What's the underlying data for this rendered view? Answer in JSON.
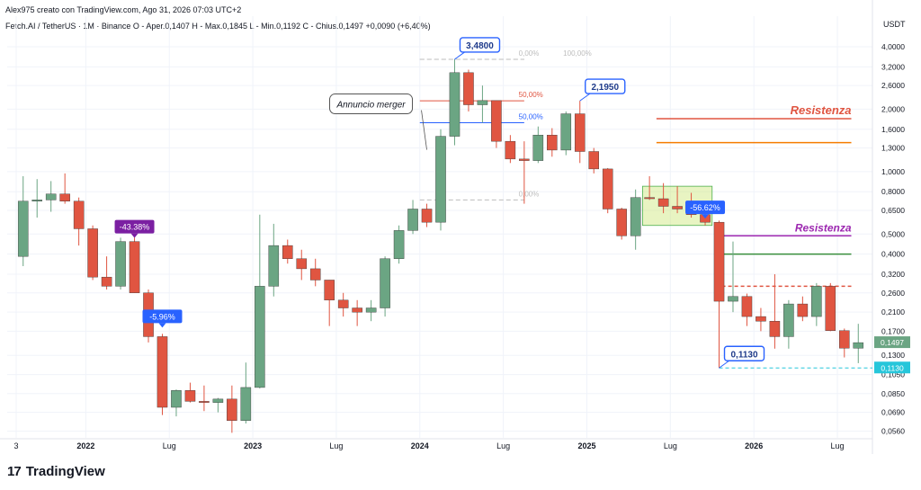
{
  "header": {
    "line1": "Alex975 creato con TradingView.com, Ago 31, 2026 07:03 UTC+2",
    "line2": "Fetch.AI / TetherUS · 1M · Binance  O - Aper.0,1407  H - Max.0,1845  L - Min.0,1192  C - Chius.0,1497  +0,0090 (+6,40%)"
  },
  "brand": {
    "name": "TradingView",
    "mark": "17"
  },
  "colors": {
    "up": "#6ba583",
    "down": "#e05541",
    "grid": "#f0f3fa",
    "axis": "#787b86",
    "blue": "#2962ff"
  },
  "chart_data": {
    "type": "candlestick",
    "currency": "USDT",
    "scale": "log",
    "ylim": [
      0.052,
      4.6
    ],
    "y_ticks": [
      "4,0000",
      "3,2000",
      "2,6000",
      "2,0000",
      "1,6000",
      "1,3000",
      "1,0000",
      "0,8000",
      "0,6500",
      "0,5000",
      "0,4000",
      "0,3200",
      "0,2600",
      "0,2100",
      "0,1700",
      "0,1300",
      "0,1050",
      "0,0850",
      "0,0690",
      "0,0560"
    ],
    "x_labels": [
      {
        "label": "3",
        "index": -0.5
      },
      {
        "label": "2022",
        "index": 4.5
      },
      {
        "label": "Lug",
        "index": 10.5
      },
      {
        "label": "2023",
        "index": 16.5
      },
      {
        "label": "Lug",
        "index": 22.5
      },
      {
        "label": "2024",
        "index": 28.5
      },
      {
        "label": "Lug",
        "index": 34.5
      },
      {
        "label": "2025",
        "index": 40.5
      },
      {
        "label": "Lug",
        "index": 46.5
      },
      {
        "label": "2026",
        "index": 52.5
      },
      {
        "label": "Lug",
        "index": 58.5
      }
    ],
    "candles": [
      {
        "o": 0.39,
        "h": 0.95,
        "l": 0.35,
        "c": 0.72
      },
      {
        "o": 0.72,
        "h": 0.92,
        "l": 0.6,
        "c": 0.73
      },
      {
        "o": 0.73,
        "h": 0.9,
        "l": 0.64,
        "c": 0.78
      },
      {
        "o": 0.78,
        "h": 0.98,
        "l": 0.7,
        "c": 0.72
      },
      {
        "o": 0.72,
        "h": 0.75,
        "l": 0.44,
        "c": 0.53
      },
      {
        "o": 0.53,
        "h": 0.55,
        "l": 0.3,
        "c": 0.31
      },
      {
        "o": 0.31,
        "h": 0.39,
        "l": 0.27,
        "c": 0.28
      },
      {
        "o": 0.28,
        "h": 0.48,
        "l": 0.27,
        "c": 0.46
      },
      {
        "o": 0.46,
        "h": 0.48,
        "l": 0.26,
        "c": 0.26
      },
      {
        "o": 0.26,
        "h": 0.27,
        "l": 0.15,
        "c": 0.16
      },
      {
        "o": 0.16,
        "h": 0.165,
        "l": 0.067,
        "c": 0.073
      },
      {
        "o": 0.073,
        "h": 0.089,
        "l": 0.066,
        "c": 0.088
      },
      {
        "o": 0.088,
        "h": 0.096,
        "l": 0.077,
        "c": 0.078
      },
      {
        "o": 0.078,
        "h": 0.093,
        "l": 0.07,
        "c": 0.077
      },
      {
        "o": 0.077,
        "h": 0.081,
        "l": 0.069,
        "c": 0.08
      },
      {
        "o": 0.08,
        "h": 0.093,
        "l": 0.055,
        "c": 0.063
      },
      {
        "o": 0.063,
        "h": 0.12,
        "l": 0.061,
        "c": 0.091
      },
      {
        "o": 0.091,
        "h": 0.62,
        "l": 0.09,
        "c": 0.28
      },
      {
        "o": 0.28,
        "h": 0.56,
        "l": 0.25,
        "c": 0.44
      },
      {
        "o": 0.44,
        "h": 0.47,
        "l": 0.36,
        "c": 0.38
      },
      {
        "o": 0.38,
        "h": 0.42,
        "l": 0.3,
        "c": 0.34
      },
      {
        "o": 0.34,
        "h": 0.38,
        "l": 0.28,
        "c": 0.3
      },
      {
        "o": 0.3,
        "h": 0.3,
        "l": 0.18,
        "c": 0.24
      },
      {
        "o": 0.24,
        "h": 0.26,
        "l": 0.2,
        "c": 0.22
      },
      {
        "o": 0.22,
        "h": 0.24,
        "l": 0.18,
        "c": 0.21
      },
      {
        "o": 0.21,
        "h": 0.24,
        "l": 0.19,
        "c": 0.22
      },
      {
        "o": 0.22,
        "h": 0.39,
        "l": 0.2,
        "c": 0.38
      },
      {
        "o": 0.38,
        "h": 0.55,
        "l": 0.36,
        "c": 0.52
      },
      {
        "o": 0.52,
        "h": 0.73,
        "l": 0.5,
        "c": 0.66
      },
      {
        "o": 0.66,
        "h": 0.7,
        "l": 0.54,
        "c": 0.57
      },
      {
        "o": 0.57,
        "h": 1.6,
        "l": 0.52,
        "c": 1.48
      },
      {
        "o": 1.48,
        "h": 3.48,
        "l": 1.34,
        "c": 3.0
      },
      {
        "o": 3.0,
        "h": 3.1,
        "l": 1.95,
        "c": 2.1
      },
      {
        "o": 2.1,
        "h": 2.6,
        "l": 1.72,
        "c": 2.2
      },
      {
        "o": 2.2,
        "h": 2.2,
        "l": 1.3,
        "c": 1.4
      },
      {
        "o": 1.4,
        "h": 1.5,
        "l": 1.1,
        "c": 1.15
      },
      {
        "o": 1.15,
        "h": 1.4,
        "l": 0.7,
        "c": 1.13
      },
      {
        "o": 1.13,
        "h": 1.65,
        "l": 1.1,
        "c": 1.5
      },
      {
        "o": 1.5,
        "h": 1.62,
        "l": 1.18,
        "c": 1.27
      },
      {
        "o": 1.27,
        "h": 1.95,
        "l": 1.2,
        "c": 1.9
      },
      {
        "o": 1.9,
        "h": 2.195,
        "l": 1.1,
        "c": 1.25
      },
      {
        "o": 1.25,
        "h": 1.3,
        "l": 0.98,
        "c": 1.03
      },
      {
        "o": 1.03,
        "h": 1.04,
        "l": 0.63,
        "c": 0.66
      },
      {
        "o": 0.66,
        "h": 0.67,
        "l": 0.47,
        "c": 0.49
      },
      {
        "o": 0.49,
        "h": 0.82,
        "l": 0.42,
        "c": 0.75
      },
      {
        "o": 0.75,
        "h": 0.95,
        "l": 0.73,
        "c": 0.74
      },
      {
        "o": 0.74,
        "h": 0.88,
        "l": 0.63,
        "c": 0.68
      },
      {
        "o": 0.68,
        "h": 0.85,
        "l": 0.63,
        "c": 0.66
      },
      {
        "o": 0.66,
        "h": 0.79,
        "l": 0.6,
        "c": 0.62
      },
      {
        "o": 0.62,
        "h": 0.69,
        "l": 0.55,
        "c": 0.57
      },
      {
        "o": 0.57,
        "h": 0.58,
        "l": 0.113,
        "c": 0.237
      },
      {
        "o": 0.237,
        "h": 0.46,
        "l": 0.21,
        "c": 0.25
      },
      {
        "o": 0.25,
        "h": 0.258,
        "l": 0.18,
        "c": 0.2
      },
      {
        "o": 0.2,
        "h": 0.22,
        "l": 0.17,
        "c": 0.19
      },
      {
        "o": 0.19,
        "h": 0.32,
        "l": 0.14,
        "c": 0.16
      },
      {
        "o": 0.16,
        "h": 0.24,
        "l": 0.14,
        "c": 0.23
      },
      {
        "o": 0.23,
        "h": 0.25,
        "l": 0.19,
        "c": 0.2
      },
      {
        "o": 0.2,
        "h": 0.29,
        "l": 0.18,
        "c": 0.28
      },
      {
        "o": 0.28,
        "h": 0.29,
        "l": 0.17,
        "c": 0.171
      },
      {
        "o": 0.171,
        "h": 0.175,
        "l": 0.127,
        "c": 0.1407
      },
      {
        "o": 0.1407,
        "h": 0.1845,
        "l": 0.1192,
        "c": 0.1497
      }
    ],
    "price_tags": [
      {
        "label": "0,1497",
        "price": 0.1497,
        "color": "#6ba583"
      },
      {
        "label": "0,1130",
        "price": 0.113,
        "color": "#26c6da"
      }
    ],
    "callouts": [
      {
        "label": "3,4800",
        "index": 31,
        "price": 3.48
      },
      {
        "label": "2,1950",
        "index": 40,
        "price": 2.195
      },
      {
        "label": "0,1130",
        "index": 50,
        "price": 0.113
      }
    ],
    "pct_badges": [
      {
        "label": "-43.38%",
        "index": 8,
        "price": 0.46,
        "color": "#7b1fa2"
      },
      {
        "label": "-5.96%",
        "index": 10,
        "price": 0.17,
        "color": "#2962ff"
      },
      {
        "label": "-56.62%",
        "index": 49,
        "price": 0.57,
        "color": "#2962ff"
      }
    ],
    "fib": {
      "left_x_index": 29,
      "right_x_index": 36,
      "levels": [
        {
          "label": "0,00%",
          "price": 3.48,
          "color": "#bdbdbd"
        },
        {
          "label": "100,00%",
          "price": 3.48,
          "color": "#bdbdbd"
        },
        {
          "label": "50,00%",
          "price": 1.72,
          "color": "#2962ff"
        },
        {
          "label": "50,00%",
          "price": 2.195,
          "color": "#e05541"
        },
        {
          "label": "0,00%",
          "price": 0.73,
          "color": "#bdbdbd"
        }
      ]
    },
    "annotation": {
      "label": "Annuncio merger",
      "index": 29,
      "price": 1.72
    },
    "resistance": [
      {
        "label": "Resistenza",
        "price": 1.8,
        "color": "#e05541"
      },
      {
        "label": "",
        "price": 1.38,
        "color": "#f57c00"
      },
      {
        "label": "Resistenza",
        "price": 0.49,
        "color": "#9c27b0"
      },
      {
        "label": "",
        "price": 0.4,
        "color": "#388e3c"
      },
      {
        "label": "",
        "price": 0.28,
        "color": "#e05541"
      }
    ],
    "highlight_box": {
      "from_index": 45,
      "to_index": 49,
      "top": 0.85,
      "bottom": 0.55
    }
  }
}
